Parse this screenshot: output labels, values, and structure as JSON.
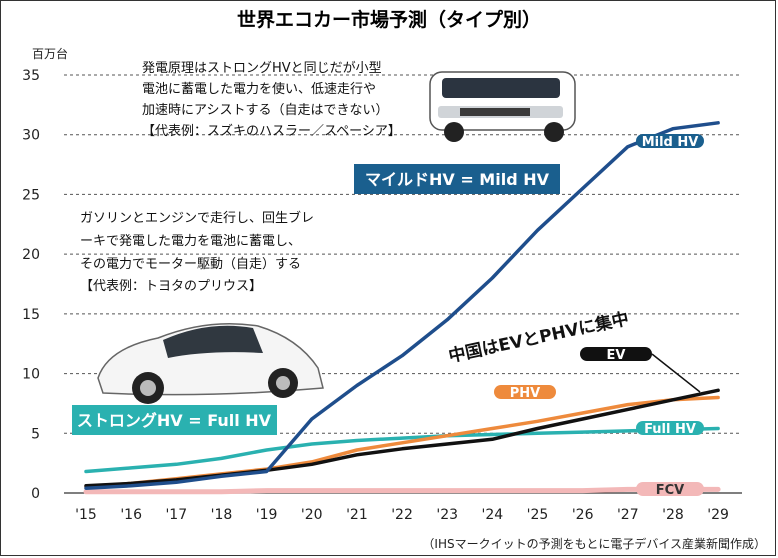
{
  "chart_data": {
    "type": "line",
    "title": "世界エコカー市場予測（タイプ別）",
    "y_unit": "百万台",
    "ylim": [
      0,
      35
    ],
    "y_ticks": [
      "0",
      "5",
      "10",
      "15",
      "20",
      "25",
      "30",
      "35"
    ],
    "categories": [
      "'15",
      "'16",
      "'17",
      "'18",
      "'19",
      "'20",
      "'21",
      "'22",
      "'23",
      "'24",
      "'25",
      "'26",
      "'27",
      "'28",
      "'29"
    ],
    "grid": "dashed horizontal",
    "series": [
      {
        "name": "Mild HV",
        "color": "#1f4e8c",
        "values": [
          0.4,
          0.6,
          0.9,
          1.4,
          1.8,
          6.2,
          9.0,
          11.5,
          14.5,
          18.0,
          22.0,
          25.5,
          29.0,
          30.5,
          31.0
        ]
      },
      {
        "name": "Full HV",
        "color": "#2ab1b0",
        "values": [
          1.8,
          2.1,
          2.4,
          2.9,
          3.6,
          4.1,
          4.4,
          4.6,
          4.8,
          4.9,
          5.0,
          5.1,
          5.2,
          5.3,
          5.4
        ]
      },
      {
        "name": "PHV",
        "color": "#ee8a3c",
        "values": [
          0.5,
          0.8,
          1.2,
          1.6,
          2.0,
          2.6,
          3.6,
          4.2,
          4.8,
          5.4,
          6.0,
          6.7,
          7.4,
          7.8,
          8.0
        ]
      },
      {
        "name": "EV",
        "color": "#111111",
        "values": [
          0.6,
          0.8,
          1.1,
          1.5,
          1.9,
          2.4,
          3.2,
          3.7,
          4.1,
          4.5,
          5.4,
          6.2,
          7.0,
          7.8,
          8.6
        ]
      },
      {
        "name": "FCV",
        "color": "#f3b8b8",
        "values": [
          0.1,
          0.1,
          0.1,
          0.1,
          0.2,
          0.2,
          0.2,
          0.2,
          0.2,
          0.2,
          0.2,
          0.2,
          0.3,
          0.3,
          0.3
        ]
      }
    ]
  },
  "annotations": {
    "mild_desc": [
      "発電原理はストロングHVと同じだが小型",
      "電池に蓄電した電力を使い、低速走行や",
      "加速時にアシストする（自走はできない）",
      "【代表例：スズキのハスラー／スペーシア】"
    ],
    "mild_box": "マイルドHV = Mild HV",
    "full_desc": [
      "ガソリンとエンジンで走行し、回生ブレ",
      "ーキで発電した電力を電池に蓄電し、",
      "その電力でモーター駆動（自走）する",
      "【代表例：トヨタのプリウス】"
    ],
    "full_box": "ストロングHV = Full HV",
    "china_callout": "中国はEVとPHVに集中",
    "tags": {
      "mild": "Mild HV",
      "full": "Full HV",
      "phv": "PHV",
      "ev": "EV",
      "fcv": "FCV"
    }
  },
  "source": "（IHSマークイットの予測をもとに電子デバイス産業新聞作成）"
}
